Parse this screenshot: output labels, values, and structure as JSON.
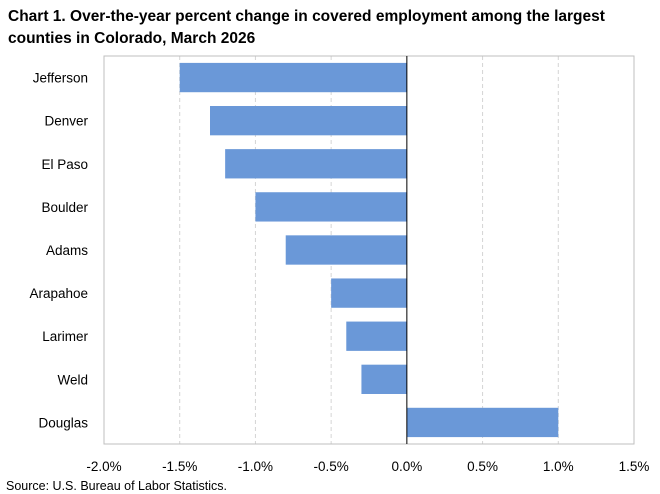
{
  "chart_data": {
    "type": "bar",
    "orientation": "horizontal",
    "title": "Chart 1. Over-the-year percent change in covered employment among the largest counties in Colorado, March 2026",
    "categories": [
      "Jefferson",
      "Denver",
      "El Paso",
      "Boulder",
      "Adams",
      "Arapahoe",
      "Larimer",
      "Weld",
      "Douglas"
    ],
    "values": [
      -1.5,
      -1.3,
      -1.2,
      -1.0,
      -0.8,
      -0.5,
      -0.4,
      -0.3,
      1.0
    ],
    "xlim": [
      -2.0,
      1.5
    ],
    "xticks": [
      -2.0,
      -1.5,
      -1.0,
      -0.5,
      0.0,
      0.5,
      1.0,
      1.5
    ],
    "xtick_labels": [
      "-2.0%",
      "-1.5%",
      "-1.0%",
      "-0.5%",
      "0.0%",
      "0.5%",
      "1.0%",
      "1.5%"
    ],
    "grid": "vertical dashed",
    "legend": "none",
    "bar_color": "#6a98d8",
    "source": "Source: U.S. Bureau of Labor Statistics."
  }
}
